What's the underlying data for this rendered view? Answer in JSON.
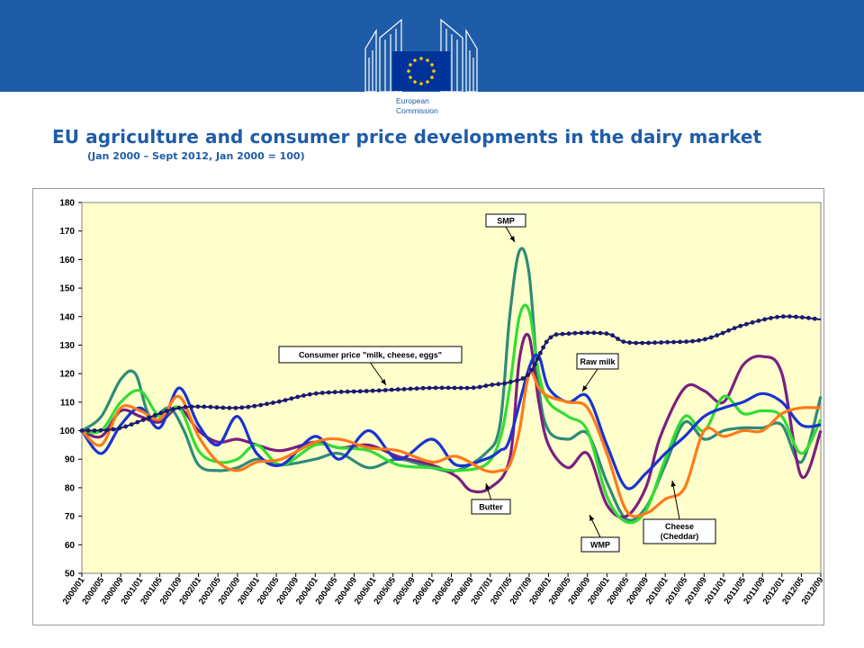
{
  "header": {
    "logo_line1": "European",
    "logo_line2": "Commission"
  },
  "colors": {
    "banner": "#1f5ca8",
    "plot_background": "#ffffcc",
    "title": "#1f5ca8"
  },
  "chart_data": {
    "type": "line",
    "title": "EU agriculture and consumer price developments in the dairy market",
    "subtitle": "(Jan 2000 – Sept 2012, Jan 2000 = 100)",
    "xlabel": "",
    "ylabel": "",
    "ylim": [
      50,
      180
    ],
    "yticks": [
      50,
      60,
      70,
      80,
      90,
      100,
      110,
      120,
      130,
      140,
      150,
      160,
      170,
      180
    ],
    "grid": false,
    "x_start": "2000/01",
    "x_end": "2012/09",
    "x_ticks": [
      "2000/01",
      "2000/05",
      "2000/09",
      "2001/01",
      "2001/05",
      "2001/09",
      "2002/01",
      "2002/05",
      "2002/09",
      "2003/01",
      "2003/05",
      "2003/09",
      "2004/01",
      "2004/05",
      "2004/09",
      "2005/01",
      "2005/05",
      "2005/09",
      "2006/01",
      "2006/05",
      "2006/09",
      "2007/01",
      "2007/05",
      "2007/09",
      "2008/01",
      "2008/05",
      "2008/09",
      "2009/01",
      "2009/05",
      "2009/09",
      "2010/01",
      "2010/05",
      "2010/09",
      "2011/01",
      "2011/05",
      "2011/09",
      "2012/01",
      "2012/05",
      "2012/09"
    ],
    "series": [
      {
        "name": "Consumer price \"milk, cheese, eggs\"",
        "color": "#1a1a6e",
        "marker": "dot",
        "x": [
          "2000/01",
          "2000/09",
          "2001/09",
          "2002/09",
          "2003/05",
          "2004/01",
          "2005/01",
          "2006/01",
          "2006/09",
          "2007/01",
          "2007/05",
          "2007/09",
          "2008/01",
          "2008/05",
          "2009/01",
          "2009/05",
          "2010/01",
          "2010/09",
          "2011/05",
          "2012/01",
          "2012/09"
        ],
        "values": [
          100,
          101,
          108,
          108,
          110,
          113,
          114,
          115,
          115,
          116,
          117,
          120,
          132,
          134,
          134,
          131,
          131,
          132,
          137,
          140,
          139
        ]
      },
      {
        "name": "SMP",
        "color": "#2e8b78",
        "x": [
          "2000/01",
          "2000/05",
          "2000/09",
          "2000/12",
          "2001/03",
          "2001/07",
          "2001/10",
          "2002/01",
          "2002/05",
          "2002/09",
          "2003/01",
          "2003/06",
          "2004/01",
          "2004/06",
          "2004/12",
          "2005/06",
          "2006/01",
          "2006/06",
          "2006/12",
          "2007/03",
          "2007/05",
          "2007/07",
          "2007/09",
          "2007/11",
          "2008/01",
          "2008/05",
          "2008/09",
          "2009/01",
          "2009/05",
          "2009/09",
          "2010/01",
          "2010/05",
          "2010/09",
          "2011/01",
          "2011/05",
          "2011/09",
          "2012/01",
          "2012/05",
          "2012/09"
        ],
        "values": [
          100,
          105,
          118,
          120,
          105,
          108,
          100,
          88,
          86,
          87,
          90,
          88,
          90,
          92,
          87,
          90,
          87,
          86,
          92,
          102,
          140,
          163,
          155,
          115,
          100,
          97,
          99,
          82,
          69,
          73,
          88,
          103,
          97,
          100,
          101,
          101,
          102,
          89,
          112
        ]
      },
      {
        "name": "Butter",
        "color": "#7b1f82",
        "x": [
          "2000/01",
          "2000/05",
          "2000/09",
          "2001/01",
          "2001/05",
          "2001/09",
          "2002/01",
          "2002/05",
          "2002/09",
          "2003/01",
          "2003/06",
          "2004/01",
          "2004/06",
          "2004/12",
          "2005/06",
          "2006/01",
          "2006/06",
          "2006/09",
          "2007/01",
          "2007/05",
          "2007/07",
          "2007/09",
          "2007/11",
          "2008/01",
          "2008/05",
          "2008/09",
          "2009/01",
          "2009/05",
          "2009/09",
          "2009/12",
          "2010/05",
          "2010/09",
          "2011/01",
          "2011/05",
          "2011/09",
          "2012/01",
          "2012/05",
          "2012/09"
        ],
        "values": [
          100,
          98,
          107,
          105,
          103,
          108,
          100,
          96,
          97,
          95,
          93,
          96,
          94,
          95,
          91,
          88,
          84,
          79,
          80,
          90,
          125,
          133,
          110,
          95,
          87,
          92,
          74,
          70,
          80,
          98,
          115,
          114,
          110,
          123,
          126,
          120,
          84,
          100
        ]
      },
      {
        "name": "WMP",
        "color": "#33dd33",
        "x": [
          "2000/01",
          "2000/05",
          "2000/09",
          "2001/01",
          "2001/05",
          "2001/09",
          "2002/01",
          "2002/05",
          "2002/09",
          "2003/01",
          "2003/06",
          "2004/01",
          "2004/06",
          "2004/12",
          "2005/06",
          "2006/01",
          "2006/06",
          "2006/12",
          "2007/03",
          "2007/05",
          "2007/07",
          "2007/09",
          "2007/11",
          "2008/01",
          "2008/05",
          "2008/09",
          "2009/01",
          "2009/05",
          "2009/09",
          "2010/01",
          "2010/05",
          "2010/09",
          "2011/01",
          "2011/05",
          "2011/09",
          "2012/01",
          "2012/05",
          "2012/09"
        ],
        "values": [
          100,
          100,
          110,
          114,
          105,
          108,
          93,
          89,
          90,
          95,
          88,
          95,
          94,
          93,
          88,
          87,
          86,
          88,
          97,
          115,
          140,
          142,
          120,
          110,
          105,
          100,
          77,
          68,
          72,
          90,
          105,
          100,
          112,
          106,
          107,
          105,
          92,
          104
        ]
      },
      {
        "name": "Raw milk",
        "color": "#1a33d0",
        "x": [
          "2000/01",
          "2000/05",
          "2000/09",
          "2001/01",
          "2001/05",
          "2001/09",
          "2002/01",
          "2002/05",
          "2002/09",
          "2003/01",
          "2003/06",
          "2004/01",
          "2004/06",
          "2004/12",
          "2005/06",
          "2006/01",
          "2006/06",
          "2006/12",
          "2007/03",
          "2007/05",
          "2007/09",
          "2007/11",
          "2008/01",
          "2008/05",
          "2008/09",
          "2009/01",
          "2009/05",
          "2009/09",
          "2010/01",
          "2010/05",
          "2010/09",
          "2011/01",
          "2011/05",
          "2011/09",
          "2012/01",
          "2012/05",
          "2012/09"
        ],
        "values": [
          100,
          92,
          102,
          108,
          101,
          115,
          102,
          95,
          105,
          92,
          88,
          98,
          90,
          100,
          90,
          97,
          88,
          90,
          93,
          97,
          122,
          126,
          115,
          110,
          112,
          95,
          80,
          85,
          92,
          98,
          105,
          108,
          110,
          113,
          110,
          102,
          102
        ]
      },
      {
        "name": "Cheese (Cheddar)",
        "color": "#ff7a1a",
        "x": [
          "2000/01",
          "2000/05",
          "2000/09",
          "2001/01",
          "2001/05",
          "2001/09",
          "2002/01",
          "2002/05",
          "2002/09",
          "2003/01",
          "2003/06",
          "2004/01",
          "2004/06",
          "2004/12",
          "2005/06",
          "2006/01",
          "2006/06",
          "2006/12",
          "2007/03",
          "2007/05",
          "2007/07",
          "2007/09",
          "2007/11",
          "2008/01",
          "2008/05",
          "2008/09",
          "2009/01",
          "2009/05",
          "2009/09",
          "2010/01",
          "2010/05",
          "2010/09",
          "2011/01",
          "2011/05",
          "2011/09",
          "2012/01",
          "2012/05",
          "2012/09"
        ],
        "values": [
          100,
          95,
          108,
          107,
          104,
          112,
          98,
          89,
          86,
          89,
          90,
          96,
          97,
          94,
          93,
          89,
          91,
          86,
          86,
          88,
          100,
          120,
          115,
          112,
          110,
          108,
          92,
          72,
          71,
          76,
          80,
          100,
          98,
          100,
          100,
          106,
          108,
          108
        ]
      }
    ],
    "annotations": [
      {
        "text": "SMP",
        "target": "SMP"
      },
      {
        "text": "Consumer price \"milk, cheese, eggs\"",
        "target": "Consumer price \"milk, cheese, eggs\""
      },
      {
        "text": "Raw milk",
        "target": "Raw milk"
      },
      {
        "text": "Butter",
        "target": "Butter"
      },
      {
        "text": "WMP",
        "target": "WMP"
      },
      {
        "text": "Cheese",
        "text2": "(Cheddar)",
        "target": "Cheese (Cheddar)"
      }
    ]
  }
}
